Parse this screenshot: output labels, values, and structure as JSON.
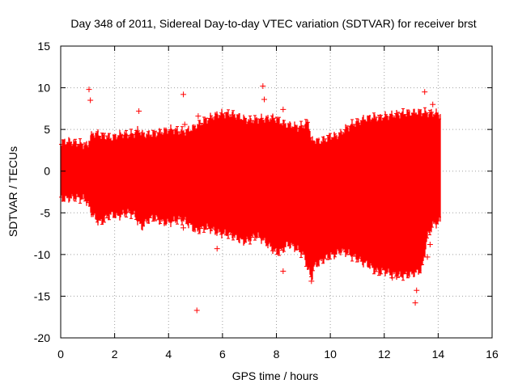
{
  "chart_data": {
    "type": "scatter",
    "title": "Day 348 of 2011, Sidereal Day-to-day VTEC variation (SDTVAR) for receiver brst",
    "xlabel": "GPS time / hours",
    "ylabel": "SDTVAR / TECUs",
    "xlim": [
      0,
      16
    ],
    "ylim": [
      -20,
      15
    ],
    "x_ticks": [
      0,
      2,
      4,
      6,
      8,
      10,
      12,
      14,
      16
    ],
    "y_ticks": [
      -20,
      -15,
      -10,
      -5,
      0,
      5,
      10,
      15
    ],
    "grid": true,
    "series": [
      {
        "name": "SDTVAR",
        "color": "#ff0000",
        "marker": "+ with error bars",
        "envelope": {
          "x": [
            0.0,
            0.3,
            0.6,
            0.9,
            1.0,
            1.1,
            1.3,
            1.5,
            1.7,
            1.9,
            2.1,
            2.3,
            2.5,
            2.7,
            2.9,
            3.0,
            3.2,
            3.4,
            3.6,
            3.8,
            4.0,
            4.2,
            4.4,
            4.6,
            4.8,
            5.0,
            5.2,
            5.4,
            5.6,
            5.8,
            6.0,
            6.2,
            6.4,
            6.6,
            6.8,
            7.0,
            7.2,
            7.4,
            7.6,
            7.8,
            8.0,
            8.2,
            8.4,
            8.6,
            8.8,
            9.0,
            9.2,
            9.3,
            9.4,
            9.6,
            9.8,
            10.0,
            10.2,
            10.4,
            10.6,
            10.8,
            11.0,
            11.2,
            11.4,
            11.6,
            11.8,
            12.0,
            12.2,
            12.4,
            12.6,
            12.8,
            13.0,
            13.2,
            13.4,
            13.6,
            13.8,
            14.0,
            14.1
          ],
          "upper": [
            3.5,
            3.6,
            3.4,
            3.2,
            3.0,
            4.2,
            4.6,
            4.3,
            4.2,
            4.0,
            4.3,
            4.5,
            4.4,
            4.5,
            5.0,
            4.5,
            4.4,
            4.5,
            4.6,
            4.8,
            5.0,
            5.0,
            4.8,
            4.8,
            5.0,
            5.4,
            5.8,
            6.2,
            6.5,
            6.8,
            6.9,
            6.9,
            6.8,
            6.6,
            6.3,
            6.1,
            6.2,
            6.3,
            6.3,
            6.4,
            6.3,
            5.8,
            5.6,
            5.5,
            5.3,
            5.5,
            6.0,
            3.5,
            3.8,
            3.6,
            3.8,
            4.2,
            4.2,
            4.6,
            5.2,
            5.6,
            5.9,
            6.2,
            6.4,
            6.5,
            6.4,
            6.6,
            6.7,
            6.8,
            6.9,
            7.0,
            7.0,
            7.1,
            7.1,
            7.0,
            7.0,
            6.9,
            6.8
          ],
          "lower": [
            -3.4,
            -3.3,
            -3.2,
            -3.4,
            -3.8,
            -4.8,
            -5.8,
            -6.2,
            -5.6,
            -5.2,
            -5.5,
            -5.2,
            -5.0,
            -5.2,
            -6.2,
            -6.8,
            -6.0,
            -5.6,
            -5.8,
            -6.2,
            -6.2,
            -6.0,
            -5.8,
            -6.0,
            -6.5,
            -7.2,
            -7.0,
            -6.8,
            -7.0,
            -7.4,
            -7.5,
            -7.6,
            -7.8,
            -8.2,
            -8.5,
            -8.3,
            -7.8,
            -8.0,
            -8.6,
            -9.2,
            -9.8,
            -9.6,
            -8.8,
            -9.0,
            -9.5,
            -10.0,
            -12.0,
            -13.0,
            -11.5,
            -11.0,
            -10.5,
            -10.2,
            -10.0,
            -9.6,
            -9.8,
            -10.2,
            -10.5,
            -11.0,
            -11.2,
            -11.8,
            -12.2,
            -12.0,
            -12.3,
            -12.5,
            -12.6,
            -12.5,
            -12.4,
            -12.2,
            -11.8,
            -8.0,
            -6.5,
            -6.2,
            -6.0
          ]
        },
        "points": [
          {
            "x": 1.05,
            "y": 9.8
          },
          {
            "x": 1.1,
            "y": 8.5
          },
          {
            "x": 2.9,
            "y": 7.2
          },
          {
            "x": 4.55,
            "y": 9.2
          },
          {
            "x": 4.6,
            "y": 5.6
          },
          {
            "x": 4.55,
            "y": -6.8
          },
          {
            "x": 5.05,
            "y": -16.7
          },
          {
            "x": 5.1,
            "y": 6.6
          },
          {
            "x": 5.2,
            "y": -5.8
          },
          {
            "x": 5.8,
            "y": -9.3
          },
          {
            "x": 6.8,
            "y": -8.0
          },
          {
            "x": 7.5,
            "y": 10.2
          },
          {
            "x": 7.55,
            "y": 8.6
          },
          {
            "x": 8.05,
            "y": 5.6
          },
          {
            "x": 8.25,
            "y": 7.4
          },
          {
            "x": 8.25,
            "y": -12.0
          },
          {
            "x": 9.3,
            "y": -13.2
          },
          {
            "x": 12.3,
            "y": -12.8
          },
          {
            "x": 13.15,
            "y": -15.8
          },
          {
            "x": 13.2,
            "y": -14.3
          },
          {
            "x": 13.5,
            "y": 9.5
          },
          {
            "x": 13.6,
            "y": -10.3
          },
          {
            "x": 13.7,
            "y": -8.8
          },
          {
            "x": 13.8,
            "y": 8.0
          }
        ]
      }
    ]
  }
}
